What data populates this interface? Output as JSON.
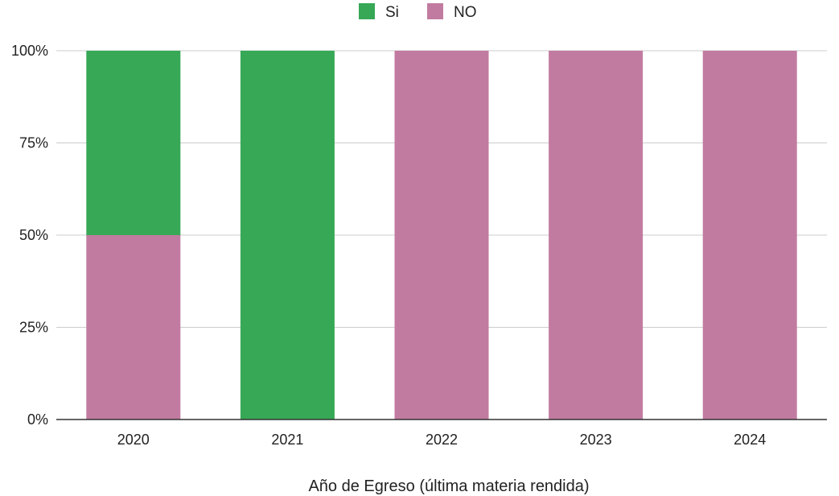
{
  "chart_data": {
    "type": "bar",
    "stacked": true,
    "percent": true,
    "categories": [
      "2020",
      "2021",
      "2022",
      "2023",
      "2024"
    ],
    "series": [
      {
        "name": "Si",
        "color": "#37a856",
        "values": [
          50,
          100,
          0,
          0,
          0
        ]
      },
      {
        "name": "NO",
        "color": "#c27ba0",
        "values": [
          50,
          0,
          100,
          100,
          100
        ]
      }
    ],
    "title": "",
    "xlabel": "Año de Egreso (última materia rendida)",
    "ylabel": "",
    "ylim": [
      0,
      100
    ],
    "yticks": [
      "0%",
      "25%",
      "50%",
      "75%",
      "100%"
    ],
    "grid": true,
    "legend": "top-center"
  }
}
